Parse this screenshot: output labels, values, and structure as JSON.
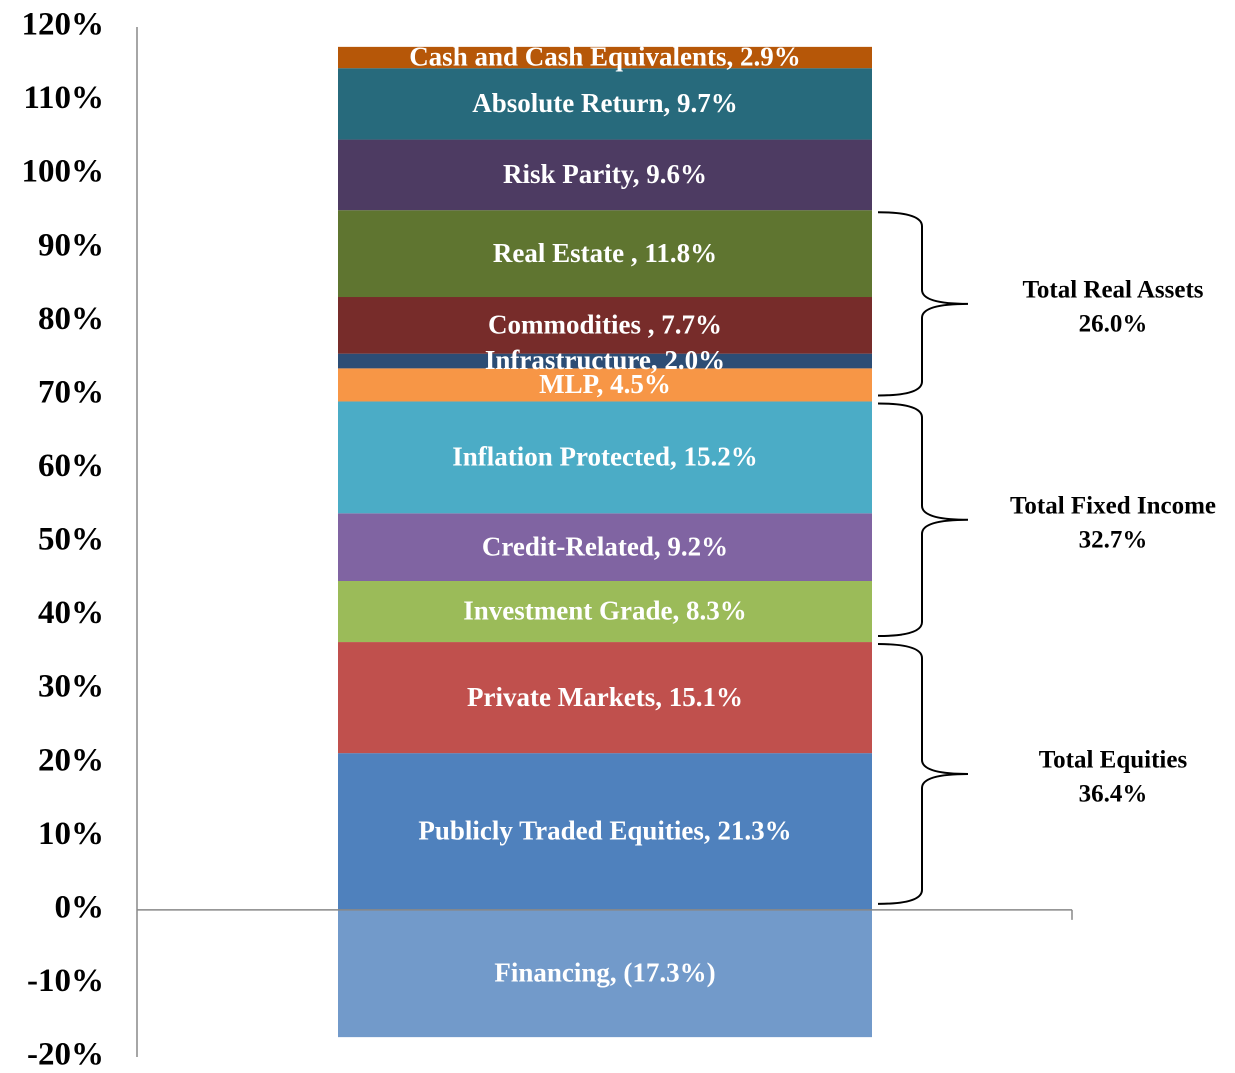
{
  "chart_data": {
    "type": "stacked_bar",
    "ylim": [
      -20,
      120
    ],
    "yticks": [
      {
        "value": 120,
        "label": "120%"
      },
      {
        "value": 110,
        "label": "110%"
      },
      {
        "value": 100,
        "label": "100%"
      },
      {
        "value": 90,
        "label": "90%"
      },
      {
        "value": 80,
        "label": "80%"
      },
      {
        "value": 70,
        "label": "70%"
      },
      {
        "value": 60,
        "label": "60%"
      },
      {
        "value": 50,
        "label": "50%"
      },
      {
        "value": 40,
        "label": "40%"
      },
      {
        "value": 30,
        "label": "30%"
      },
      {
        "value": 20,
        "label": "20%"
      },
      {
        "value": 10,
        "label": "10%"
      },
      {
        "value": 0,
        "label": "0%"
      },
      {
        "value": -10,
        "label": "-10%"
      },
      {
        "value": -20,
        "label": "-20%"
      }
    ],
    "series": [
      {
        "color": "#4f81bd",
        "values": [
          21.3
        ],
        "value_labels": [
          "Publicly Traded Equities, 21.3%"
        ]
      },
      {
        "color": "#c0504d",
        "values": [
          15.1
        ],
        "value_labels": [
          "Private Markets, 15.1%"
        ]
      },
      {
        "color": "#9bbb59",
        "values": [
          8.3
        ],
        "value_labels": [
          "Investment Grade, 8.3%"
        ]
      },
      {
        "color": "#8064a2",
        "values": [
          9.2
        ],
        "value_labels": [
          "Credit-Related, 9.2%"
        ]
      },
      {
        "color": "#4bacc6",
        "values": [
          15.2
        ],
        "value_labels": [
          "Inflation Protected, 15.2%"
        ]
      },
      {
        "color": "#f79646",
        "values": [
          4.5
        ],
        "value_labels": [
          "MLP, 4.5%"
        ]
      },
      {
        "color": "#2c4d75",
        "values": [
          2.0
        ],
        "value_labels": [
          "Infrastructure, 2.0%"
        ]
      },
      {
        "color": "#772c2a",
        "values": [
          7.7
        ],
        "value_labels": [
          "Commodities , 7.7%"
        ]
      },
      {
        "color": "#5f7530",
        "values": [
          11.8
        ],
        "value_labels": [
          "Real Estate , 11.8%"
        ]
      },
      {
        "color": "#4d3b62",
        "values": [
          9.6
        ],
        "value_labels": [
          "Risk Parity, 9.6%"
        ]
      },
      {
        "color": "#276a7c",
        "values": [
          9.7
        ],
        "value_labels": [
          "Absolute Return, 9.7%"
        ]
      },
      {
        "color": "#b65708",
        "values": [
          2.9
        ],
        "value_labels": [
          "Cash and Cash Equivalents, 2.9%"
        ]
      },
      {
        "color": "#729aca",
        "values": [
          -17.3
        ],
        "value_labels": [
          "Financing, (17.3%)"
        ]
      }
    ],
    "groups": [
      {
        "name": "Total Equities",
        "value": 36.4,
        "value_label": "36.4%"
      },
      {
        "name": "Total Fixed Income",
        "value": 32.7,
        "value_label": "32.7%"
      },
      {
        "name": "Total Real Assets",
        "value": 26.0,
        "value_label": "26.0%"
      }
    ]
  }
}
